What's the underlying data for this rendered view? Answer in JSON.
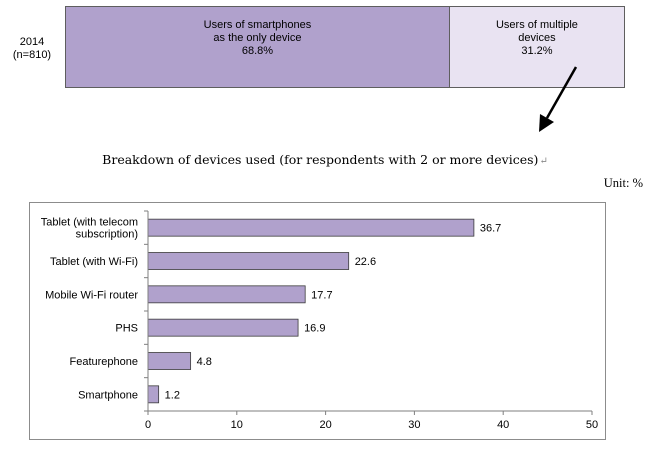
{
  "colors": {
    "only_device_fill": "#b0a1cc",
    "multi_device_fill": "#e9e3f2",
    "bar_fill": "#b0a1cc",
    "bar_stroke": "#3b3b3b"
  },
  "summary": {
    "year_label": "2014",
    "n_label": "(n=810)",
    "segments": [
      {
        "name": "Users of smartphones\nas the only device",
        "value_label": "68.8%",
        "value": 68.8
      },
      {
        "name": "Users of multiple\ndevices",
        "value_label": "31.2%",
        "value": 31.2
      }
    ]
  },
  "breakdown_title": "Breakdown of devices used (for respondents with 2 or more devices)",
  "paragraph_mark": "↵",
  "unit_label": "Unit:  %",
  "chart_data": {
    "type": "bar",
    "orientation": "horizontal",
    "categories": [
      "Tablet (with telecom subscription)",
      "Tablet (with Wi-Fi)",
      "Mobile Wi-Fi router",
      "PHS",
      "Featurephone",
      "Smartphone"
    ],
    "category_lines": [
      [
        "Tablet (with telecom",
        "subscription)"
      ],
      [
        "Tablet (with Wi-Fi)"
      ],
      [
        "Mobile Wi-Fi router"
      ],
      [
        "PHS"
      ],
      [
        "Featurephone"
      ],
      [
        "Smartphone"
      ]
    ],
    "values": [
      36.7,
      22.6,
      17.7,
      16.9,
      4.8,
      1.2
    ],
    "value_labels": [
      "36.7",
      "22.6",
      "17.7",
      "16.9",
      "4.8",
      "1.2"
    ],
    "xlim": [
      0,
      50
    ],
    "xticks": [
      0,
      10,
      20,
      30,
      40,
      50
    ],
    "grid": false,
    "legend": "none"
  }
}
